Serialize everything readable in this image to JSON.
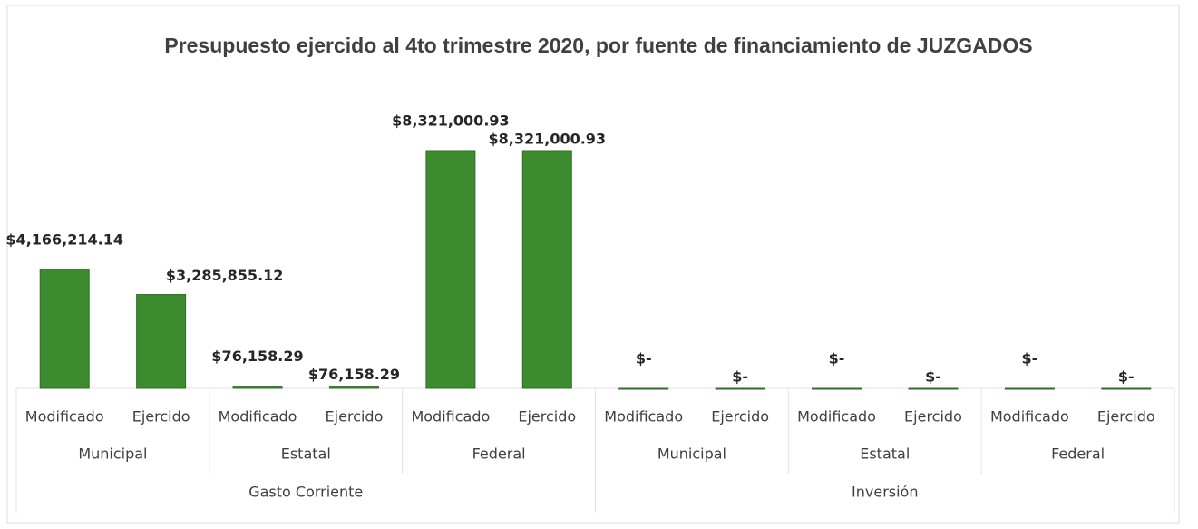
{
  "chart_data": {
    "type": "bar",
    "title": "Presupuesto ejercido al 4to trimestre 2020, por fuente de financiamiento de JUZGADOS",
    "categories": [
      "Modificado",
      "Ejercido",
      "Modificado",
      "Ejercido",
      "Modificado",
      "Ejercido",
      "Modificado",
      "Ejercido",
      "Modificado",
      "Ejercido",
      "Modificado",
      "Ejercido"
    ],
    "groups": [
      "Municipal",
      "Estatal",
      "Federal",
      "Municipal",
      "Estatal",
      "Federal"
    ],
    "supergroups": [
      "Gasto Corriente",
      "Inversión"
    ],
    "values": [
      4166214.14,
      3285855.12,
      76158.29,
      76158.29,
      8321000.93,
      8321000.93,
      0,
      0,
      0,
      0,
      0,
      0
    ],
    "value_labels": [
      "$4,166,214.14",
      "$3,285,855.12",
      "$76,158.29",
      "$76,158.29",
      "$8,321,000.93",
      "$8,321,000.93",
      "$-",
      "$-",
      "$-",
      "$-",
      "$-",
      "$-"
    ],
    "color": "#3d8b2f"
  }
}
